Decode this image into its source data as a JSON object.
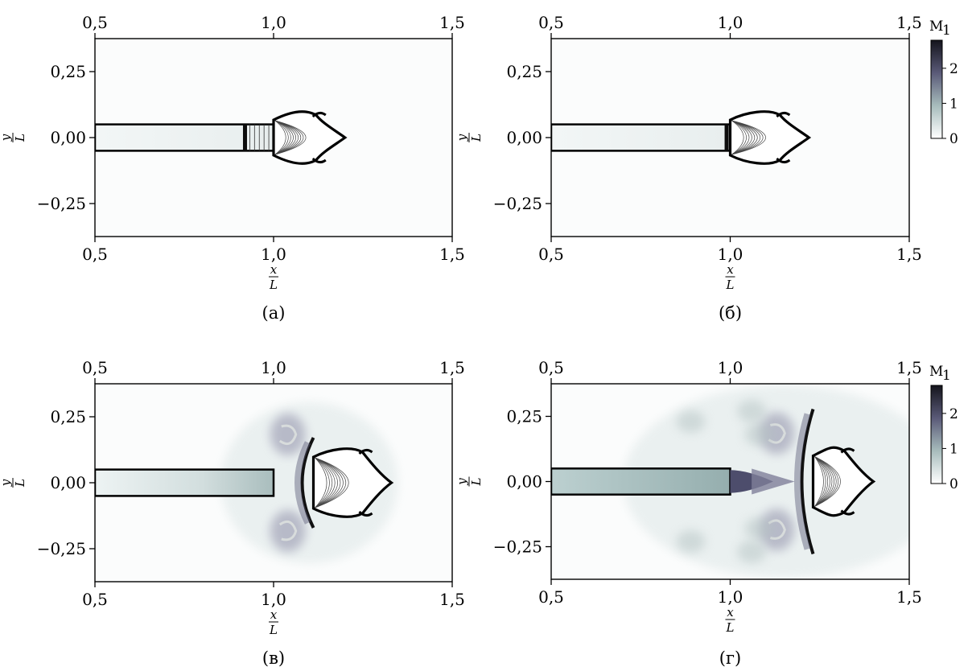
{
  "chart_data": [
    {
      "type": "heatmap",
      "caption": "(а)",
      "xlabel": {
        "num": "x",
        "den": "L"
      },
      "ylabel": {
        "num": "y",
        "den": "L"
      },
      "xlim": [
        0.5,
        1.5
      ],
      "ylim": [
        -0.375,
        0.375
      ],
      "xticks": [
        0.5,
        1.0,
        1.5
      ],
      "xtick_labels": [
        "0,5",
        "1,0",
        "1,5"
      ],
      "yticks": [
        0.25,
        0.0,
        -0.25
      ],
      "ytick_labels": [
        "0,25",
        "0,00",
        "−0,25"
      ],
      "nozzle": {
        "x_start": 0.5,
        "x_end": 1.0,
        "half_width": 0.05
      },
      "jet_front_x": 1.2,
      "shock_x": 0.92,
      "max_mach_region": "nozzle-shock",
      "flow_stage": 1
    },
    {
      "type": "heatmap",
      "caption": "(б)",
      "xlabel": {
        "num": "x",
        "den": "L"
      },
      "ylabel": {
        "num": "y",
        "den": "L"
      },
      "xlim": [
        0.5,
        1.5
      ],
      "ylim": [
        -0.375,
        0.375
      ],
      "xticks": [
        0.5,
        1.0,
        1.5
      ],
      "xtick_labels": [
        "0,5",
        "1,0",
        "1,5"
      ],
      "yticks": [
        0.25,
        0.0,
        -0.25
      ],
      "ytick_labels": [
        "0,25",
        "0,00",
        "−0,25"
      ],
      "nozzle": {
        "x_start": 0.5,
        "x_end": 1.0,
        "half_width": 0.05
      },
      "jet_front_x": 1.22,
      "shock_x": 0.99,
      "flow_stage": 2,
      "colorbar": {
        "label": "M",
        "label_sub": "1",
        "min": 0,
        "max": 2.8,
        "ticks": [
          0,
          1,
          2
        ],
        "tick_labels": [
          "0",
          "1",
          "2"
        ],
        "colors": [
          "#ffffff",
          "#a7bcbc",
          "#5a5a78",
          "#14141c"
        ]
      }
    },
    {
      "type": "heatmap",
      "caption": "(в)",
      "xlabel": {
        "num": "x",
        "den": "L"
      },
      "ylabel": {
        "num": "y",
        "den": "L"
      },
      "xlim": [
        0.5,
        1.5
      ],
      "ylim": [
        -0.375,
        0.375
      ],
      "xticks": [
        0.5,
        1.0,
        1.5
      ],
      "xtick_labels": [
        "0,5",
        "1,0",
        "1,5"
      ],
      "yticks": [
        0.25,
        0.0,
        -0.25
      ],
      "ytick_labels": [
        "0,25",
        "0,00",
        "−0,25"
      ],
      "nozzle": {
        "x_start": 0.5,
        "x_end": 1.0,
        "half_width": 0.05
      },
      "jet_front_x": 1.33,
      "bow_front_x": 1.08,
      "flow_stage": 3
    },
    {
      "type": "heatmap",
      "caption": "(г)",
      "xlabel": {
        "num": "x",
        "den": "L"
      },
      "ylabel": {
        "num": "y",
        "den": "L"
      },
      "xlim": [
        0.5,
        1.5
      ],
      "ylim": [
        -0.375,
        0.375
      ],
      "xticks": [
        0.5,
        1.0,
        1.5
      ],
      "xtick_labels": [
        "0,5",
        "1,0",
        "1,5"
      ],
      "yticks": [
        0.25,
        0.0,
        -0.25
      ],
      "ytick_labels": [
        "0,25",
        "0,00",
        "−0,25"
      ],
      "nozzle": {
        "x_start": 0.5,
        "x_end": 1.0,
        "half_width": 0.05
      },
      "jet_front_x": 1.4,
      "bow_front_x": 1.2,
      "flow_stage": 4,
      "colorbar": {
        "label": "M",
        "label_sub": "1",
        "min": 0,
        "max": 2.8,
        "ticks": [
          0,
          1,
          2
        ],
        "tick_labels": [
          "0",
          "1",
          "2"
        ],
        "colors": [
          "#ffffff",
          "#a7bcbc",
          "#5a5a78",
          "#14141c"
        ]
      }
    }
  ]
}
